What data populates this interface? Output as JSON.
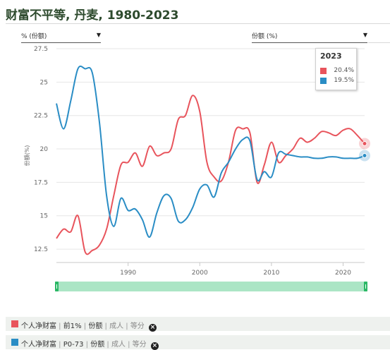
{
  "title": "财富不平等, 丹麦, 1980-2023",
  "selectors": {
    "left": {
      "label": "% (份额)"
    },
    "right": {
      "label": "份额 (%)"
    }
  },
  "tooltip": {
    "year": "2023",
    "rows": [
      {
        "value": "20.4%",
        "color": "#e8545c"
      },
      {
        "value": "19.5%",
        "color": "#2a8dc5"
      }
    ]
  },
  "legend": [
    {
      "name": "个人净财富",
      "parts": [
        "前1%",
        "份额",
        "成人",
        "等分"
      ],
      "color": "#e8545c"
    },
    {
      "name": "个人净财富",
      "parts": [
        "P0-73",
        "份额",
        "成人",
        "等分"
      ],
      "color": "#2a8dc5"
    }
  ],
  "chart_data": {
    "type": "line",
    "ylabel": "份额(%)",
    "xlim": [
      1980,
      2023
    ],
    "ylim": [
      11.5,
      27.5
    ],
    "yticks": [
      12.5,
      15,
      17.5,
      20,
      22.5,
      25,
      27.5
    ],
    "xticks": [
      1990,
      2000,
      2010,
      2020
    ],
    "series": [
      {
        "color": "#e8545c",
        "x": [
          1980,
          1981,
          1982,
          1983,
          1984,
          1985,
          1986,
          1987,
          1988,
          1989,
          1990,
          1991,
          1992,
          1993,
          1994,
          1995,
          1996,
          1997,
          1998,
          1999,
          2000,
          2001,
          2002,
          2003,
          2004,
          2005,
          2006,
          2007,
          2008,
          2009,
          2010,
          2011,
          2012,
          2013,
          2014,
          2015,
          2016,
          2017,
          2018,
          2019,
          2020,
          2021,
          2022,
          2023
        ],
        "y": [
          13.3,
          14.0,
          13.8,
          15.0,
          12.3,
          12.4,
          12.8,
          14.0,
          16.5,
          18.8,
          19.0,
          19.7,
          18.7,
          20.2,
          19.5,
          19.7,
          20.0,
          22.2,
          22.5,
          24.0,
          22.8,
          19.0,
          17.9,
          17.6,
          19.0,
          21.4,
          21.5,
          21.2,
          17.5,
          18.8,
          20.5,
          19.0,
          19.5,
          20.0,
          20.8,
          20.5,
          20.8,
          21.3,
          21.2,
          21.0,
          21.4,
          21.5,
          21.0,
          20.4
        ]
      },
      {
        "color": "#2a8dc5",
        "x": [
          1980,
          1981,
          1982,
          1983,
          1984,
          1985,
          1986,
          1987,
          1988,
          1989,
          1990,
          1991,
          1992,
          1993,
          1994,
          1995,
          1996,
          1997,
          1998,
          1999,
          2000,
          2001,
          2002,
          2003,
          2004,
          2005,
          2006,
          2007,
          2008,
          2009,
          2010,
          2011,
          2012,
          2013,
          2014,
          2015,
          2016,
          2017,
          2018,
          2019,
          2020,
          2021,
          2022,
          2023
        ],
        "y": [
          23.4,
          21.5,
          23.6,
          26.0,
          26.0,
          25.7,
          22.0,
          16.5,
          14.2,
          16.3,
          15.4,
          15.5,
          14.7,
          13.4,
          15.2,
          16.5,
          16.3,
          14.6,
          14.7,
          15.6,
          17.0,
          17.3,
          16.4,
          18.2,
          19.0,
          20.0,
          20.7,
          20.6,
          17.7,
          18.3,
          17.9,
          19.7,
          19.6,
          19.5,
          19.4,
          19.4,
          19.3,
          19.3,
          19.4,
          19.4,
          19.3,
          19.3,
          19.3,
          19.5
        ]
      }
    ]
  }
}
